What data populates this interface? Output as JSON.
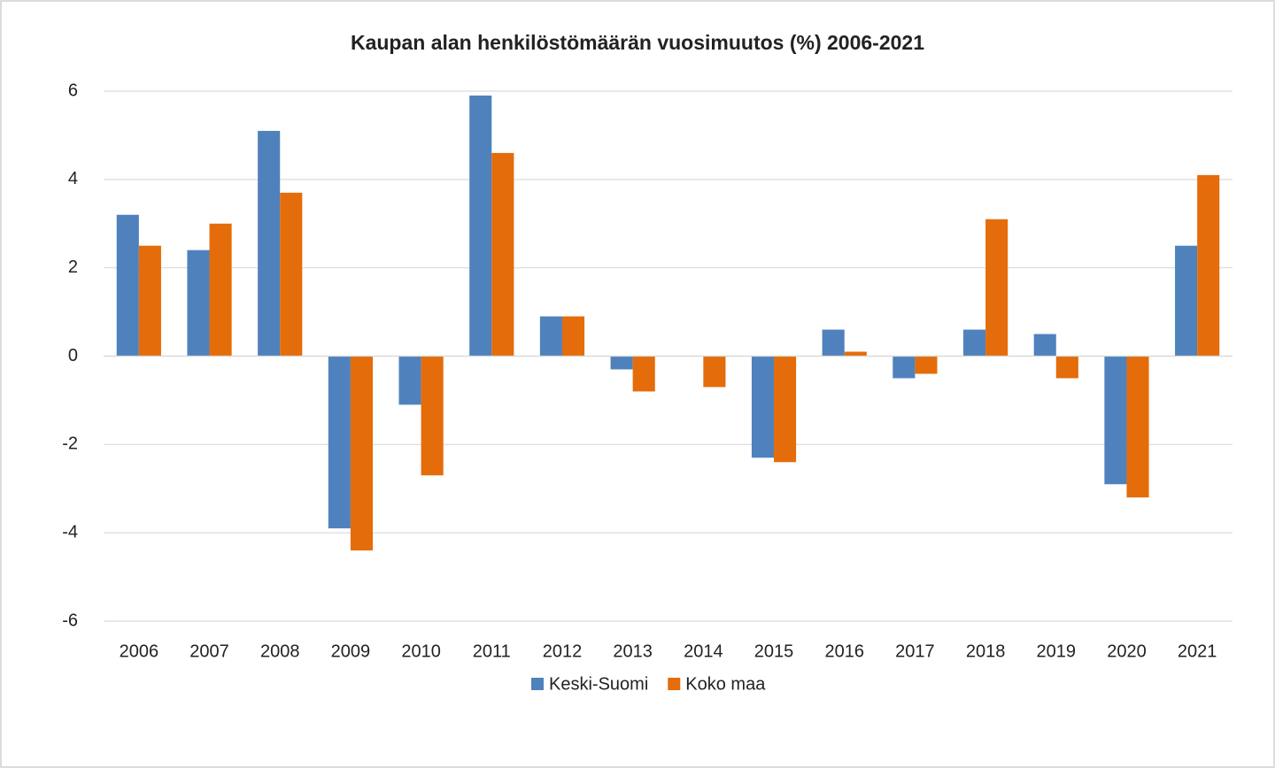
{
  "chart_data": {
    "type": "bar",
    "title": "Kaupan alan henkilöstömäärän vuosimuutos (%) 2006-2021",
    "categories": [
      "2006",
      "2007",
      "2008",
      "2009",
      "2010",
      "2011",
      "2012",
      "2013",
      "2014",
      "2015",
      "2016",
      "2017",
      "2018",
      "2019",
      "2020",
      "2021"
    ],
    "series": [
      {
        "name": "Keski-Suomi",
        "color": "#4f81bd",
        "values": [
          3.2,
          2.4,
          5.1,
          -3.9,
          -1.1,
          5.9,
          0.9,
          -0.3,
          0,
          -2.3,
          0.6,
          -0.5,
          0.6,
          0.5,
          -2.9,
          2.5
        ]
      },
      {
        "name": "Koko maa",
        "color": "#e46c0a",
        "values": [
          2.5,
          3.0,
          3.7,
          -4.4,
          -2.7,
          4.6,
          0.9,
          -0.8,
          -0.7,
          -2.4,
          0.1,
          -0.4,
          3.1,
          -0.5,
          -3.2,
          4.1
        ]
      }
    ],
    "ylim": [
      -6,
      6
    ],
    "yticks": [
      -6,
      -4,
      -2,
      0,
      2,
      4,
      6
    ],
    "grid": true,
    "legend": "bottom"
  }
}
